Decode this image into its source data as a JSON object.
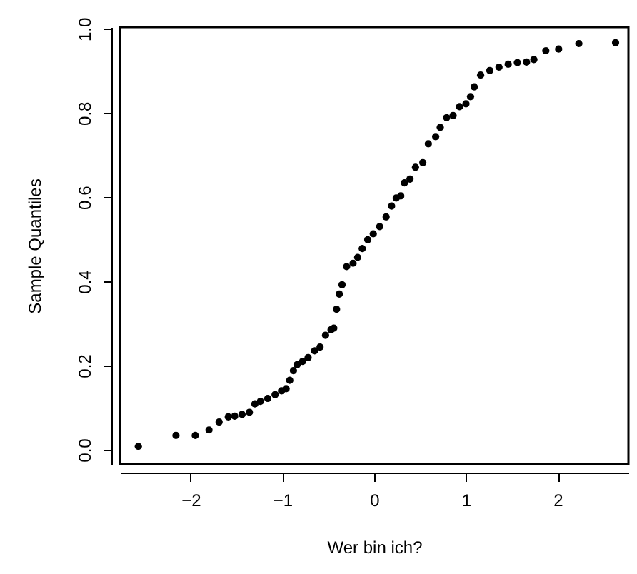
{
  "chart_data": {
    "type": "scatter",
    "xlabel": "Wer bin ich?",
    "ylabel": "Sample Quantiles",
    "marker": "circle",
    "grid": false,
    "xlim": [
      -2.77,
      2.77
    ],
    "ylim": [
      -0.034,
      1.004
    ],
    "xticks": [
      -2,
      -1,
      0,
      1,
      2
    ],
    "yticks": [
      {
        "value": 0,
        "label": "0.0"
      },
      0.2,
      0.4,
      0.6,
      0.8,
      {
        "value": 1,
        "label": "1.0"
      }
    ],
    "series": [
      {
        "color": "#000000",
        "x": [
          -2.57,
          -2.16,
          -1.95,
          -1.8,
          -1.69,
          -1.59,
          -1.52,
          -1.44,
          -1.36,
          -1.3,
          -1.24,
          -1.16,
          -1.08,
          -1.01,
          -0.96,
          -0.92,
          -0.88,
          -0.84,
          -0.78,
          -0.72,
          -0.65,
          -0.59,
          -0.53,
          -0.47,
          -0.44,
          -0.41,
          -0.38,
          -0.35,
          -0.3,
          -0.23,
          -0.18,
          -0.13,
          -0.07,
          -0.01,
          0.06,
          0.13,
          0.19,
          0.24,
          0.29,
          0.33,
          0.39,
          0.45,
          0.53,
          0.59,
          0.67,
          0.72,
          0.79,
          0.86,
          0.93,
          1.0,
          1.05,
          1.09,
          1.16,
          1.26,
          1.36,
          1.46,
          1.56,
          1.66,
          1.74,
          1.87,
          2.01,
          2.23,
          2.63
        ],
        "values": [
          0.008,
          0.034,
          0.034,
          0.047,
          0.066,
          0.078,
          0.08,
          0.084,
          0.089,
          0.109,
          0.115,
          0.122,
          0.131,
          0.14,
          0.145,
          0.165,
          0.188,
          0.202,
          0.21,
          0.219,
          0.235,
          0.244,
          0.272,
          0.285,
          0.289,
          0.334,
          0.37,
          0.392,
          0.435,
          0.443,
          0.457,
          0.478,
          0.499,
          0.513,
          0.53,
          0.553,
          0.579,
          0.598,
          0.603,
          0.634,
          0.643,
          0.671,
          0.682,
          0.727,
          0.744,
          0.766,
          0.789,
          0.794,
          0.815,
          0.822,
          0.839,
          0.862,
          0.89,
          0.901,
          0.909,
          0.916,
          0.92,
          0.921,
          0.927,
          0.948,
          0.952,
          0.965,
          0.967
        ]
      }
    ]
  }
}
